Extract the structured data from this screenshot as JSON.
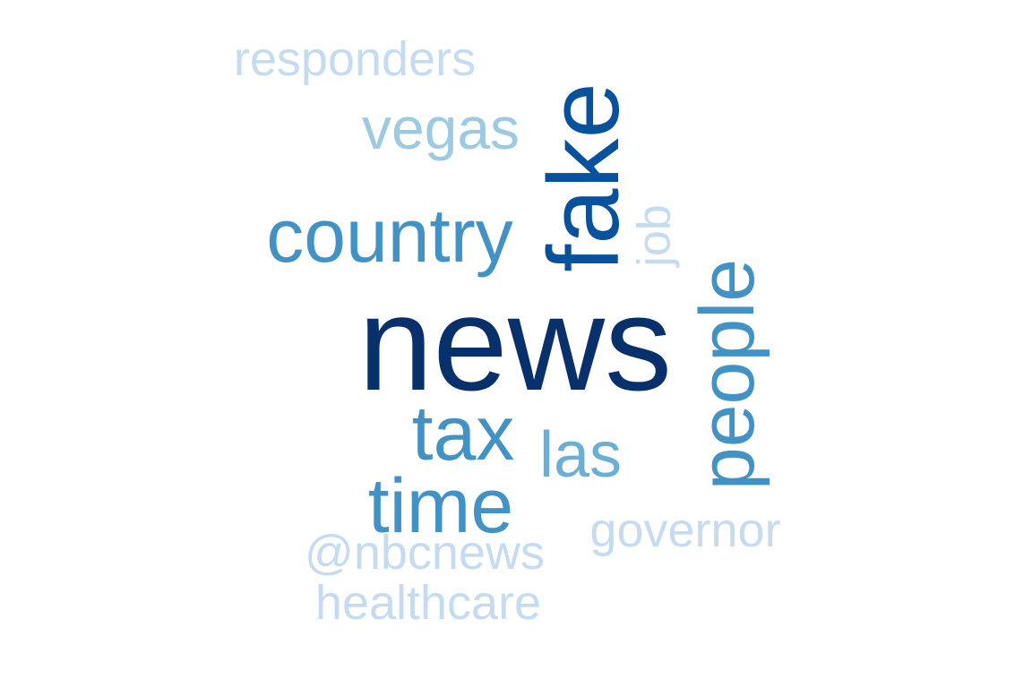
{
  "words": [
    {
      "text": "news",
      "weight": 1.0,
      "color": "#08306b",
      "rotated": false
    },
    {
      "text": "fake",
      "weight": 0.82,
      "color": "#08519c",
      "rotated": true
    },
    {
      "text": "country",
      "weight": 0.62,
      "color": "#4292c6",
      "rotated": false
    },
    {
      "text": "people",
      "weight": 0.55,
      "color": "#4292c6",
      "rotated": true
    },
    {
      "text": "tax",
      "weight": 0.6,
      "color": "#4292c6",
      "rotated": false
    },
    {
      "text": "time",
      "weight": 0.58,
      "color": "#4292c6",
      "rotated": false
    },
    {
      "text": "las",
      "weight": 0.45,
      "color": "#6baed6",
      "rotated": false
    },
    {
      "text": "vegas",
      "weight": 0.42,
      "color": "#9ecae1",
      "rotated": false
    },
    {
      "text": "responders",
      "weight": 0.3,
      "color": "#c6dbef",
      "rotated": false
    },
    {
      "text": "job",
      "weight": 0.28,
      "color": "#c6dbef",
      "rotated": true
    },
    {
      "text": "governor",
      "weight": 0.3,
      "color": "#c6dbef",
      "rotated": false
    },
    {
      "text": "@nbcnews",
      "weight": 0.3,
      "color": "#c6dbef",
      "rotated": false
    },
    {
      "text": "healthcare",
      "weight": 0.3,
      "color": "#c6dbef",
      "rotated": false
    }
  ]
}
